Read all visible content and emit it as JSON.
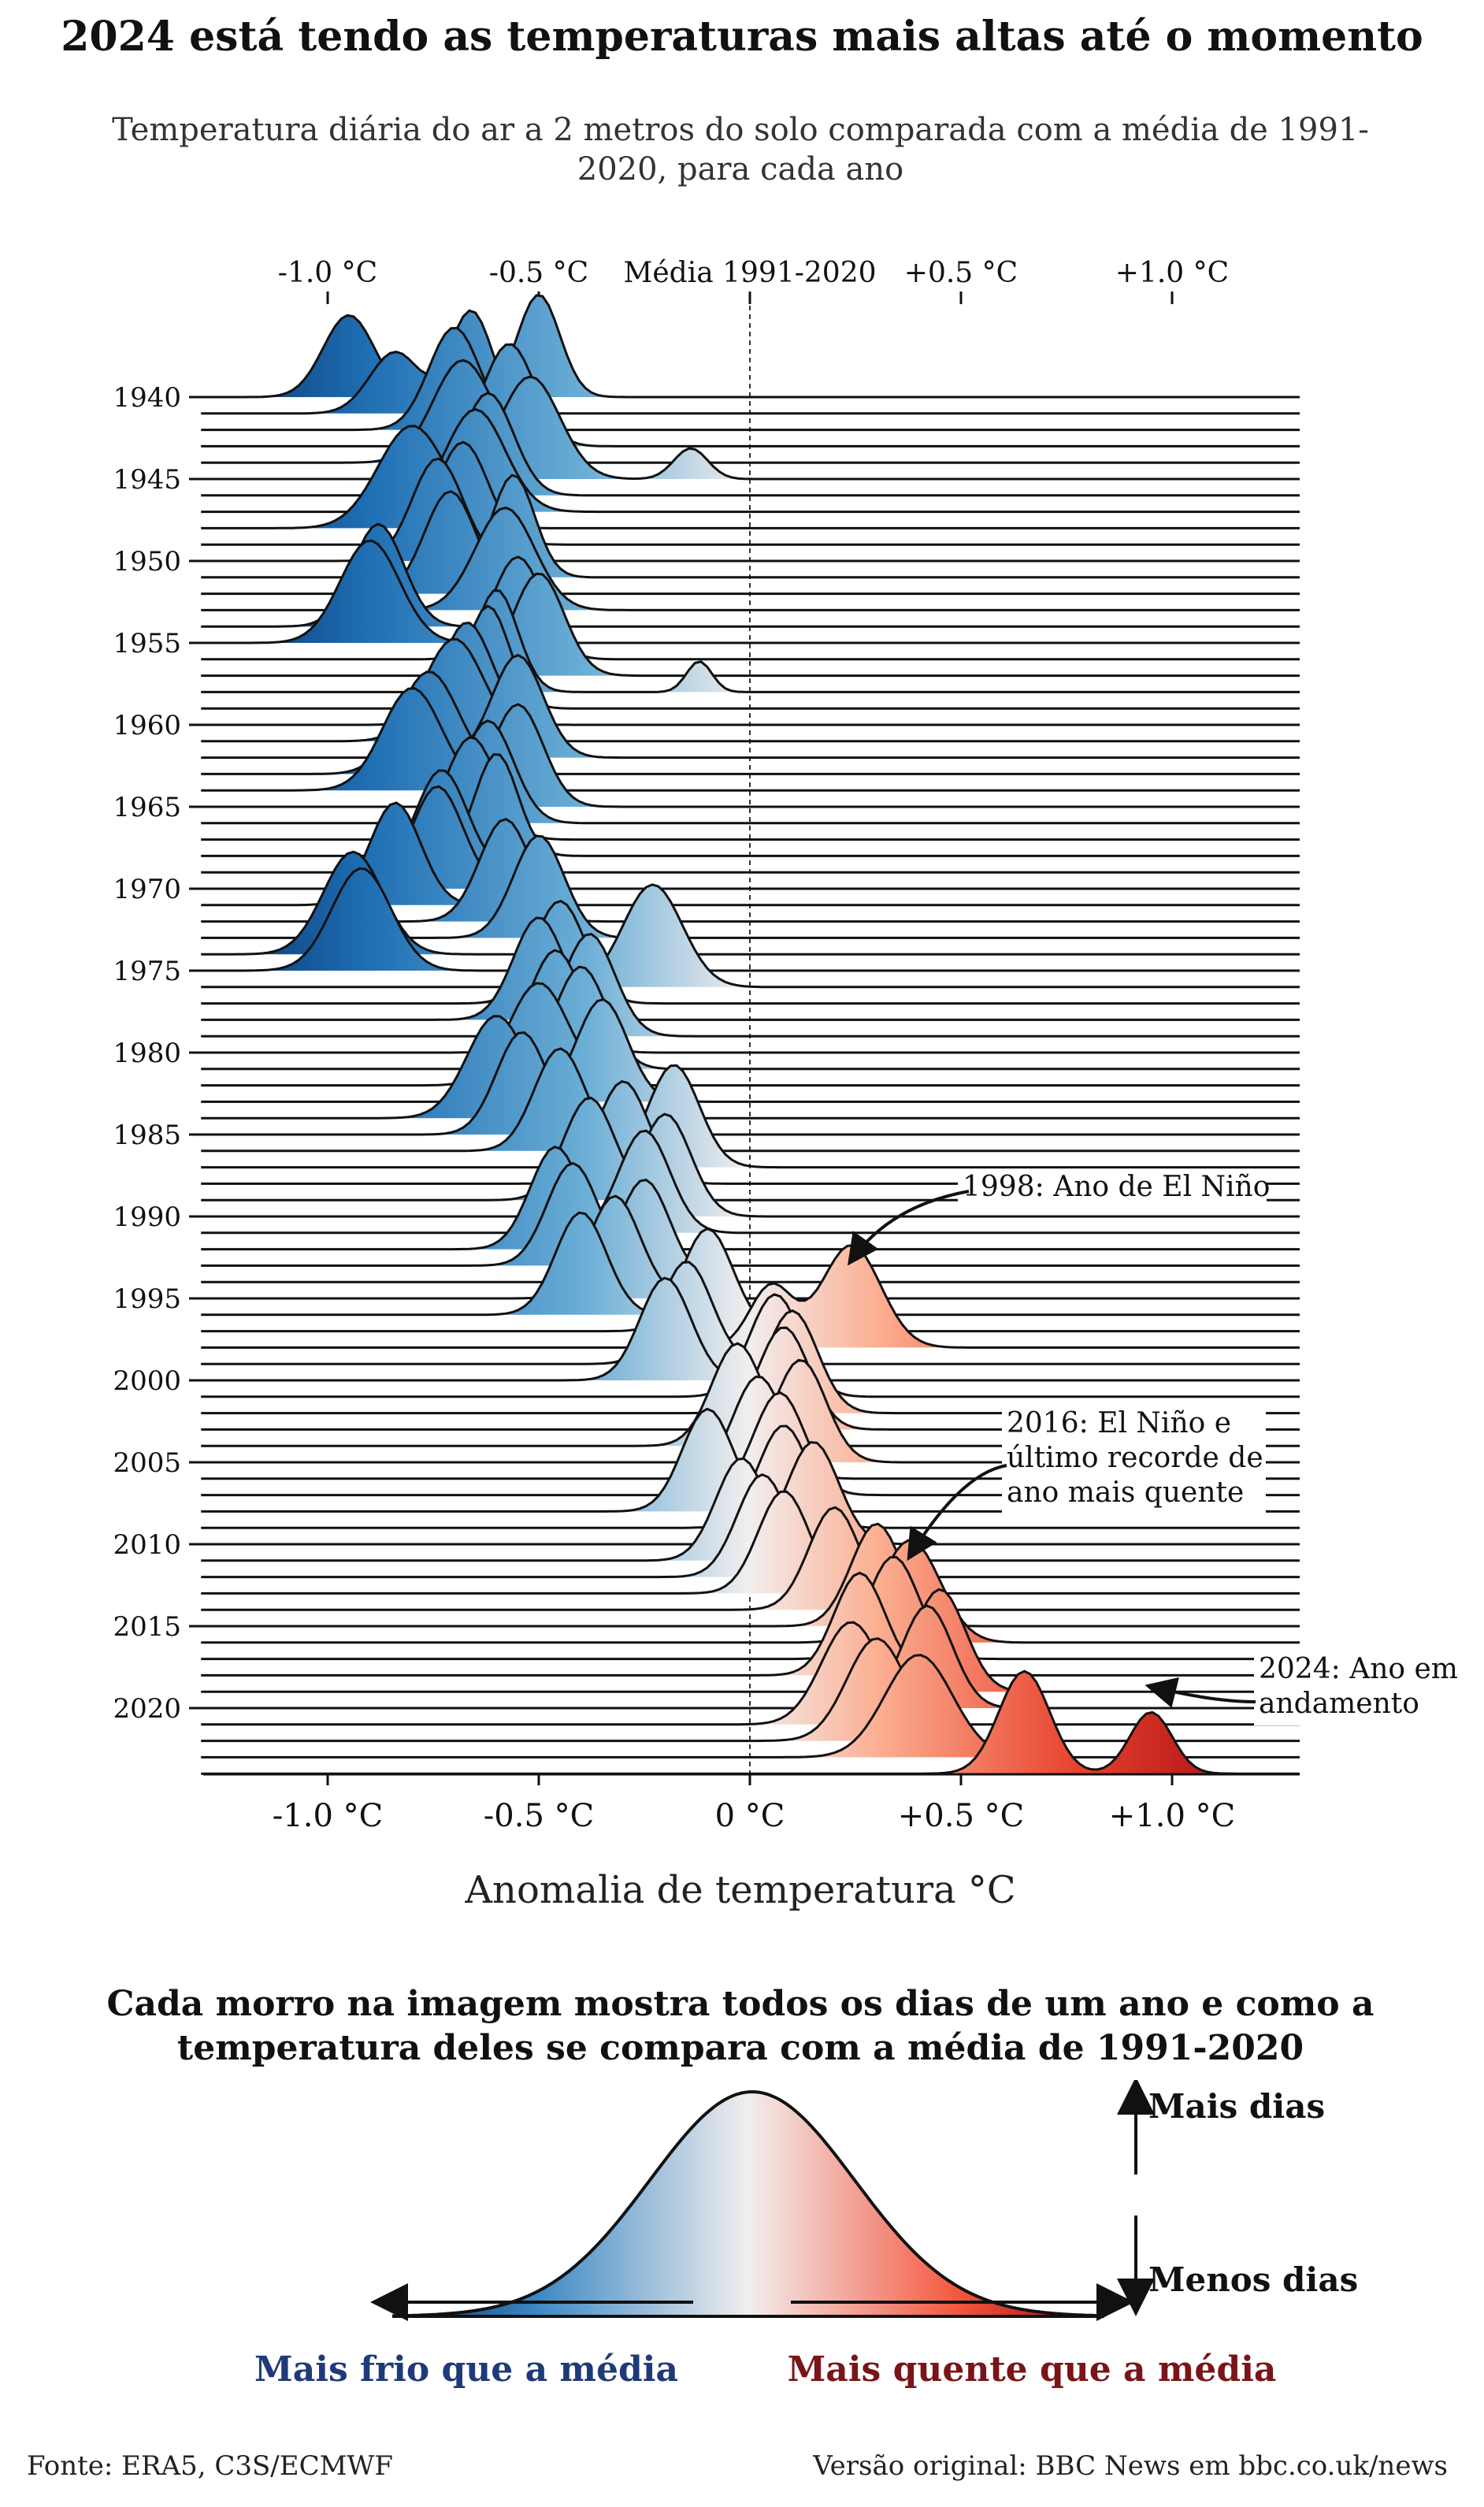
{
  "title": "2024 está tendo as temperaturas mais altas até o momento",
  "subtitle": "Temperatura diária do ar a 2 metros do solo comparada com a média de 1991-2020, para cada ano",
  "chart_data": {
    "type": "ridgeline",
    "xlabel": "Anomalia de temperatura °C",
    "xlim": [
      -1.3,
      1.3
    ],
    "top_axis_ticks": [
      {
        "x": -1.0,
        "label": "-1.0 °C"
      },
      {
        "x": -0.5,
        "label": "-0.5 °C"
      },
      {
        "x": 0.0,
        "label": "Média 1991-2020"
      },
      {
        "x": 0.5,
        "label": "+0.5 °C"
      },
      {
        "x": 1.0,
        "label": "+1.0 °C"
      }
    ],
    "bottom_axis_ticks": [
      {
        "x": -1.0,
        "label": "-1.0 °C"
      },
      {
        "x": -0.5,
        "label": "-0.5 °C"
      },
      {
        "x": 0.0,
        "label": "0 °C"
      },
      {
        "x": 0.5,
        "label": "+0.5 °C"
      },
      {
        "x": 1.0,
        "label": "+1.0 °C"
      }
    ],
    "y_ticks": [
      "1940",
      "1945",
      "1950",
      "1955",
      "1960",
      "1965",
      "1970",
      "1975",
      "1980",
      "1985",
      "1990",
      "1995",
      "2000",
      "2005",
      "2010",
      "2015",
      "2020"
    ],
    "year_range": [
      1940,
      2024
    ],
    "peaks": [
      {
        "year": 1940,
        "components": [
          [
            -0.5,
            0.05,
            1.0
          ],
          [
            -0.95,
            0.06,
            0.8
          ]
        ]
      },
      {
        "year": 1941,
        "components": [
          [
            -0.66,
            0.05,
            1.0
          ],
          [
            -0.84,
            0.06,
            0.6
          ]
        ]
      },
      {
        "year": 1942,
        "components": [
          [
            -0.7,
            0.06,
            1.0
          ]
        ]
      },
      {
        "year": 1943,
        "components": [
          [
            -0.57,
            0.06,
            1.0
          ]
        ]
      },
      {
        "year": 1944,
        "components": [
          [
            -0.68,
            0.07,
            1.0
          ]
        ]
      },
      {
        "year": 1945,
        "components": [
          [
            -0.52,
            0.07,
            1.0
          ],
          [
            -0.14,
            0.04,
            0.3
          ]
        ]
      },
      {
        "year": 1946,
        "components": [
          [
            -0.62,
            0.06,
            1.0
          ]
        ]
      },
      {
        "year": 1947,
        "components": [
          [
            -0.65,
            0.07,
            1.0
          ]
        ]
      },
      {
        "year": 1948,
        "components": [
          [
            -0.8,
            0.08,
            1.0
          ]
        ]
      },
      {
        "year": 1949,
        "components": [
          [
            -0.68,
            0.06,
            1.0
          ]
        ]
      },
      {
        "year": 1950,
        "components": [
          [
            -0.74,
            0.06,
            1.0
          ]
        ]
      },
      {
        "year": 1951,
        "components": [
          [
            -0.56,
            0.05,
            1.0
          ]
        ]
      },
      {
        "year": 1952,
        "components": [
          [
            -0.71,
            0.06,
            1.0
          ]
        ]
      },
      {
        "year": 1953,
        "components": [
          [
            -0.58,
            0.07,
            1.0
          ]
        ]
      },
      {
        "year": 1954,
        "components": [
          [
            -0.88,
            0.06,
            1.0
          ]
        ]
      },
      {
        "year": 1955,
        "components": [
          [
            -0.9,
            0.07,
            1.0
          ]
        ]
      },
      {
        "year": 1956,
        "components": [
          [
            -0.55,
            0.06,
            1.0
          ]
        ]
      },
      {
        "year": 1957,
        "components": [
          [
            -0.5,
            0.06,
            1.0
          ]
        ]
      },
      {
        "year": 1958,
        "components": [
          [
            -0.6,
            0.05,
            1.0
          ],
          [
            -0.12,
            0.03,
            0.3
          ]
        ]
      },
      {
        "year": 1959,
        "components": [
          [
            -0.62,
            0.05,
            1.0
          ]
        ]
      },
      {
        "year": 1960,
        "components": [
          [
            -0.67,
            0.06,
            1.0
          ]
        ]
      },
      {
        "year": 1961,
        "components": [
          [
            -0.7,
            0.07,
            1.0
          ]
        ]
      },
      {
        "year": 1962,
        "components": [
          [
            -0.55,
            0.06,
            1.0
          ]
        ]
      },
      {
        "year": 1963,
        "components": [
          [
            -0.76,
            0.07,
            1.0
          ]
        ]
      },
      {
        "year": 1964,
        "components": [
          [
            -0.8,
            0.07,
            1.0
          ]
        ]
      },
      {
        "year": 1965,
        "components": [
          [
            -0.55,
            0.06,
            1.0
          ]
        ]
      },
      {
        "year": 1966,
        "components": [
          [
            -0.62,
            0.06,
            1.0
          ]
        ]
      },
      {
        "year": 1967,
        "components": [
          [
            -0.66,
            0.06,
            1.0
          ]
        ]
      },
      {
        "year": 1968,
        "components": [
          [
            -0.6,
            0.05,
            1.0
          ]
        ]
      },
      {
        "year": 1969,
        "components": [
          [
            -0.73,
            0.06,
            1.0
          ]
        ]
      },
      {
        "year": 1970,
        "components": [
          [
            -0.74,
            0.06,
            1.0
          ]
        ]
      },
      {
        "year": 1971,
        "components": [
          [
            -0.84,
            0.06,
            1.0
          ]
        ]
      },
      {
        "year": 1972,
        "components": [
          [
            -0.58,
            0.06,
            1.0
          ]
        ]
      },
      {
        "year": 1973,
        "components": [
          [
            -0.5,
            0.06,
            1.0
          ]
        ]
      },
      {
        "year": 1974,
        "components": [
          [
            -0.94,
            0.07,
            1.0
          ]
        ]
      },
      {
        "year": 1975,
        "components": [
          [
            -0.92,
            0.07,
            1.0
          ]
        ]
      },
      {
        "year": 1976,
        "components": [
          [
            -0.23,
            0.07,
            1.0
          ]
        ]
      },
      {
        "year": 1977,
        "components": [
          [
            -0.45,
            0.06,
            1.0
          ]
        ]
      },
      {
        "year": 1978,
        "components": [
          [
            -0.5,
            0.06,
            1.0
          ]
        ]
      },
      {
        "year": 1979,
        "components": [
          [
            -0.38,
            0.06,
            1.0
          ]
        ]
      },
      {
        "year": 1980,
        "components": [
          [
            -0.46,
            0.06,
            1.0
          ]
        ]
      },
      {
        "year": 1981,
        "components": [
          [
            -0.4,
            0.06,
            1.0
          ]
        ]
      },
      {
        "year": 1982,
        "components": [
          [
            -0.5,
            0.07,
            1.0
          ]
        ]
      },
      {
        "year": 1983,
        "components": [
          [
            -0.35,
            0.06,
            1.0
          ]
        ]
      },
      {
        "year": 1984,
        "components": [
          [
            -0.6,
            0.07,
            1.0
          ]
        ]
      },
      {
        "year": 1985,
        "components": [
          [
            -0.54,
            0.06,
            1.0
          ]
        ]
      },
      {
        "year": 1986,
        "components": [
          [
            -0.45,
            0.06,
            1.0
          ]
        ]
      },
      {
        "year": 1987,
        "components": [
          [
            -0.18,
            0.06,
            1.0
          ]
        ]
      },
      {
        "year": 1988,
        "components": [
          [
            -0.3,
            0.06,
            1.0
          ]
        ]
      },
      {
        "year": 1989,
        "components": [
          [
            -0.38,
            0.06,
            1.0
          ]
        ]
      },
      {
        "year": 1990,
        "components": [
          [
            -0.2,
            0.06,
            1.0
          ]
        ]
      },
      {
        "year": 1991,
        "components": [
          [
            -0.25,
            0.06,
            1.0
          ]
        ]
      },
      {
        "year": 1992,
        "components": [
          [
            -0.46,
            0.06,
            1.0
          ]
        ]
      },
      {
        "year": 1993,
        "components": [
          [
            -0.42,
            0.06,
            1.0
          ]
        ]
      },
      {
        "year": 1994,
        "components": [
          [
            -0.25,
            0.06,
            1.0
          ]
        ]
      },
      {
        "year": 1995,
        "components": [
          [
            -0.32,
            0.06,
            1.0
          ]
        ]
      },
      {
        "year": 1996,
        "components": [
          [
            -0.4,
            0.06,
            1.0
          ]
        ]
      },
      {
        "year": 1997,
        "components": [
          [
            -0.1,
            0.06,
            1.0
          ]
        ]
      },
      {
        "year": 1998,
        "components": [
          [
            0.24,
            0.07,
            1.0
          ],
          [
            0.05,
            0.05,
            0.6
          ]
        ]
      },
      {
        "year": 1999,
        "components": [
          [
            -0.15,
            0.06,
            1.0
          ]
        ]
      },
      {
        "year": 2000,
        "components": [
          [
            -0.2,
            0.06,
            1.0
          ]
        ]
      },
      {
        "year": 2001,
        "components": [
          [
            0.06,
            0.06,
            1.0
          ]
        ]
      },
      {
        "year": 2002,
        "components": [
          [
            0.1,
            0.06,
            1.0
          ]
        ]
      },
      {
        "year": 2003,
        "components": [
          [
            0.08,
            0.06,
            1.0
          ]
        ]
      },
      {
        "year": 2004,
        "components": [
          [
            -0.03,
            0.06,
            1.0
          ]
        ]
      },
      {
        "year": 2005,
        "components": [
          [
            0.12,
            0.06,
            1.0
          ]
        ]
      },
      {
        "year": 2006,
        "components": [
          [
            0.02,
            0.06,
            1.0
          ]
        ]
      },
      {
        "year": 2007,
        "components": [
          [
            0.07,
            0.06,
            1.0
          ]
        ]
      },
      {
        "year": 2008,
        "components": [
          [
            -0.1,
            0.06,
            1.0
          ]
        ]
      },
      {
        "year": 2009,
        "components": [
          [
            0.08,
            0.06,
            1.0
          ]
        ]
      },
      {
        "year": 2010,
        "components": [
          [
            0.15,
            0.06,
            1.0
          ]
        ]
      },
      {
        "year": 2011,
        "components": [
          [
            -0.02,
            0.06,
            1.0
          ]
        ]
      },
      {
        "year": 2012,
        "components": [
          [
            0.03,
            0.06,
            1.0
          ]
        ]
      },
      {
        "year": 2013,
        "components": [
          [
            0.08,
            0.06,
            1.0
          ]
        ]
      },
      {
        "year": 2014,
        "components": [
          [
            0.2,
            0.06,
            1.0
          ]
        ]
      },
      {
        "year": 2015,
        "components": [
          [
            0.3,
            0.06,
            1.0
          ]
        ]
      },
      {
        "year": 2016,
        "components": [
          [
            0.38,
            0.07,
            1.0
          ]
        ]
      },
      {
        "year": 2017,
        "components": [
          [
            0.34,
            0.06,
            1.0
          ]
        ]
      },
      {
        "year": 2018,
        "components": [
          [
            0.26,
            0.06,
            1.0
          ]
        ]
      },
      {
        "year": 2019,
        "components": [
          [
            0.45,
            0.06,
            1.0
          ]
        ]
      },
      {
        "year": 2020,
        "components": [
          [
            0.42,
            0.06,
            1.0
          ]
        ]
      },
      {
        "year": 2021,
        "components": [
          [
            0.24,
            0.07,
            1.0
          ]
        ]
      },
      {
        "year": 2022,
        "components": [
          [
            0.3,
            0.07,
            1.0
          ]
        ]
      },
      {
        "year": 2023,
        "components": [
          [
            0.4,
            0.08,
            1.0
          ]
        ]
      },
      {
        "year": 2024,
        "components": [
          [
            0.65,
            0.06,
            1.0
          ],
          [
            0.95,
            0.05,
            0.6
          ]
        ]
      }
    ],
    "annotations": [
      {
        "year": 1998,
        "x": 0.24,
        "text": "1998: Ano de El Niño"
      },
      {
        "year": 2016,
        "x": 0.38,
        "text": "2016: El Niño e último recorde de ano mais quente"
      },
      {
        "year": 2024,
        "x": 0.95,
        "text": "2024: Ano em andamento"
      }
    ]
  },
  "explainer": {
    "title": "Cada morro na imagem mostra todos os dias de um ano e como a temperatura deles se compara com a média de 1991-2020",
    "more_days": "Mais dias",
    "fewer_days": "Menos dias",
    "colder": "Mais frio que a média",
    "warmer": "Mais quente que a média",
    "colder_color": "#1f3a7a",
    "warmer_color": "#7a1418"
  },
  "footer": {
    "source": "Fonte: ERA5, C3S/ECMWF",
    "original": "Versão original: BBC News em bbc.co.uk/news"
  }
}
